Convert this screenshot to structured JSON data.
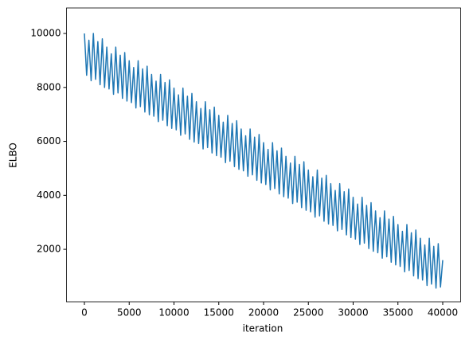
{
  "chart_data": {
    "type": "line",
    "xlabel": "iteration",
    "ylabel": "ELBO",
    "xlim": [
      -2000,
      42000
    ],
    "ylim": [
      55,
      10945
    ],
    "xticks": [
      0,
      5000,
      10000,
      15000,
      20000,
      25000,
      30000,
      35000,
      40000
    ],
    "yticks": [
      2000,
      4000,
      6000,
      8000,
      10000
    ],
    "grid": false,
    "x": [
      0,
      250,
      500,
      750,
      1000,
      1250,
      1500,
      1750,
      2000,
      2250,
      2500,
      2750,
      3000,
      3250,
      3500,
      3750,
      4000,
      4250,
      4500,
      4750,
      5000,
      5250,
      5500,
      5750,
      6000,
      6250,
      6500,
      6750,
      7000,
      7250,
      7500,
      7750,
      8000,
      8250,
      8500,
      8750,
      9000,
      9250,
      9500,
      9750,
      10000,
      10250,
      10500,
      10750,
      11000,
      11250,
      11500,
      11750,
      12000,
      12250,
      12500,
      12750,
      13000,
      13250,
      13500,
      13750,
      14000,
      14250,
      14500,
      14750,
      15000,
      15250,
      15500,
      15750,
      16000,
      16250,
      16500,
      16750,
      17000,
      17250,
      17500,
      17750,
      18000,
      18250,
      18500,
      18750,
      19000,
      19250,
      19500,
      19750,
      20000,
      20250,
      20500,
      20750,
      21000,
      21250,
      21500,
      21750,
      22000,
      22250,
      22500,
      22750,
      23000,
      23250,
      23500,
      23750,
      24000,
      24250,
      24500,
      24750,
      25000,
      25250,
      25500,
      25750,
      26000,
      26250,
      26500,
      26750,
      27000,
      27250,
      27500,
      27750,
      28000,
      28250,
      28500,
      28750,
      29000,
      29250,
      29500,
      29750,
      30000,
      30250,
      30500,
      30750,
      31000,
      31250,
      31500,
      31750,
      32000,
      32250,
      32500,
      32750,
      33000,
      33250,
      33500,
      33750,
      34000,
      34250,
      34500,
      34750,
      35000,
      35250,
      35500,
      35750,
      36000,
      36250,
      36500,
      36750,
      37000,
      37250,
      37500,
      37750,
      38000,
      38250,
      38500,
      38750,
      39000,
      39250,
      39500,
      39750,
      40000
    ],
    "series": [
      {
        "color": "#1f77b4",
        "values": [
          10000,
          8450,
          9750,
          8250,
          10000,
          8300,
          9700,
          8100,
          9800,
          8000,
          9494,
          7944,
          9244,
          7744,
          9494,
          7794,
          9194,
          7594,
          9294,
          7494,
          8988,
          7438,
          8738,
          7238,
          8988,
          7288,
          8688,
          7088,
          8788,
          6988,
          8482,
          6932,
          8232,
          6732,
          8482,
          6782,
          8182,
          6582,
          8282,
          6482,
          7976,
          6426,
          7726,
          6226,
          7976,
          6276,
          7676,
          6076,
          7776,
          5976,
          7470,
          5920,
          7220,
          5720,
          7470,
          5770,
          7170,
          5570,
          7270,
          5470,
          6964,
          5414,
          6714,
          5214,
          6964,
          5264,
          6664,
          5064,
          6764,
          4964,
          6458,
          4908,
          6208,
          4708,
          6458,
          4758,
          6158,
          4558,
          6258,
          4458,
          5952,
          4402,
          5702,
          4202,
          5952,
          4252,
          5652,
          4052,
          5752,
          3952,
          5446,
          3896,
          5196,
          3696,
          5446,
          3746,
          5146,
          3546,
          5246,
          3446,
          4940,
          3390,
          4690,
          3190,
          4940,
          3240,
          4640,
          3040,
          4740,
          2940,
          4434,
          2884,
          4184,
          2684,
          4434,
          2734,
          4134,
          2534,
          4234,
          2434,
          3928,
          2378,
          3678,
          2178,
          3928,
          2228,
          3628,
          2028,
          3728,
          1928,
          3422,
          1872,
          3172,
          1672,
          3422,
          1722,
          3122,
          1522,
          3222,
          1422,
          2916,
          1366,
          2666,
          1166,
          2916,
          1216,
          2616,
          1016,
          2716,
          916,
          2410,
          860,
          2160,
          660,
          2410,
          710,
          2110,
          560,
          2210,
          600,
          1600
        ]
      }
    ]
  }
}
